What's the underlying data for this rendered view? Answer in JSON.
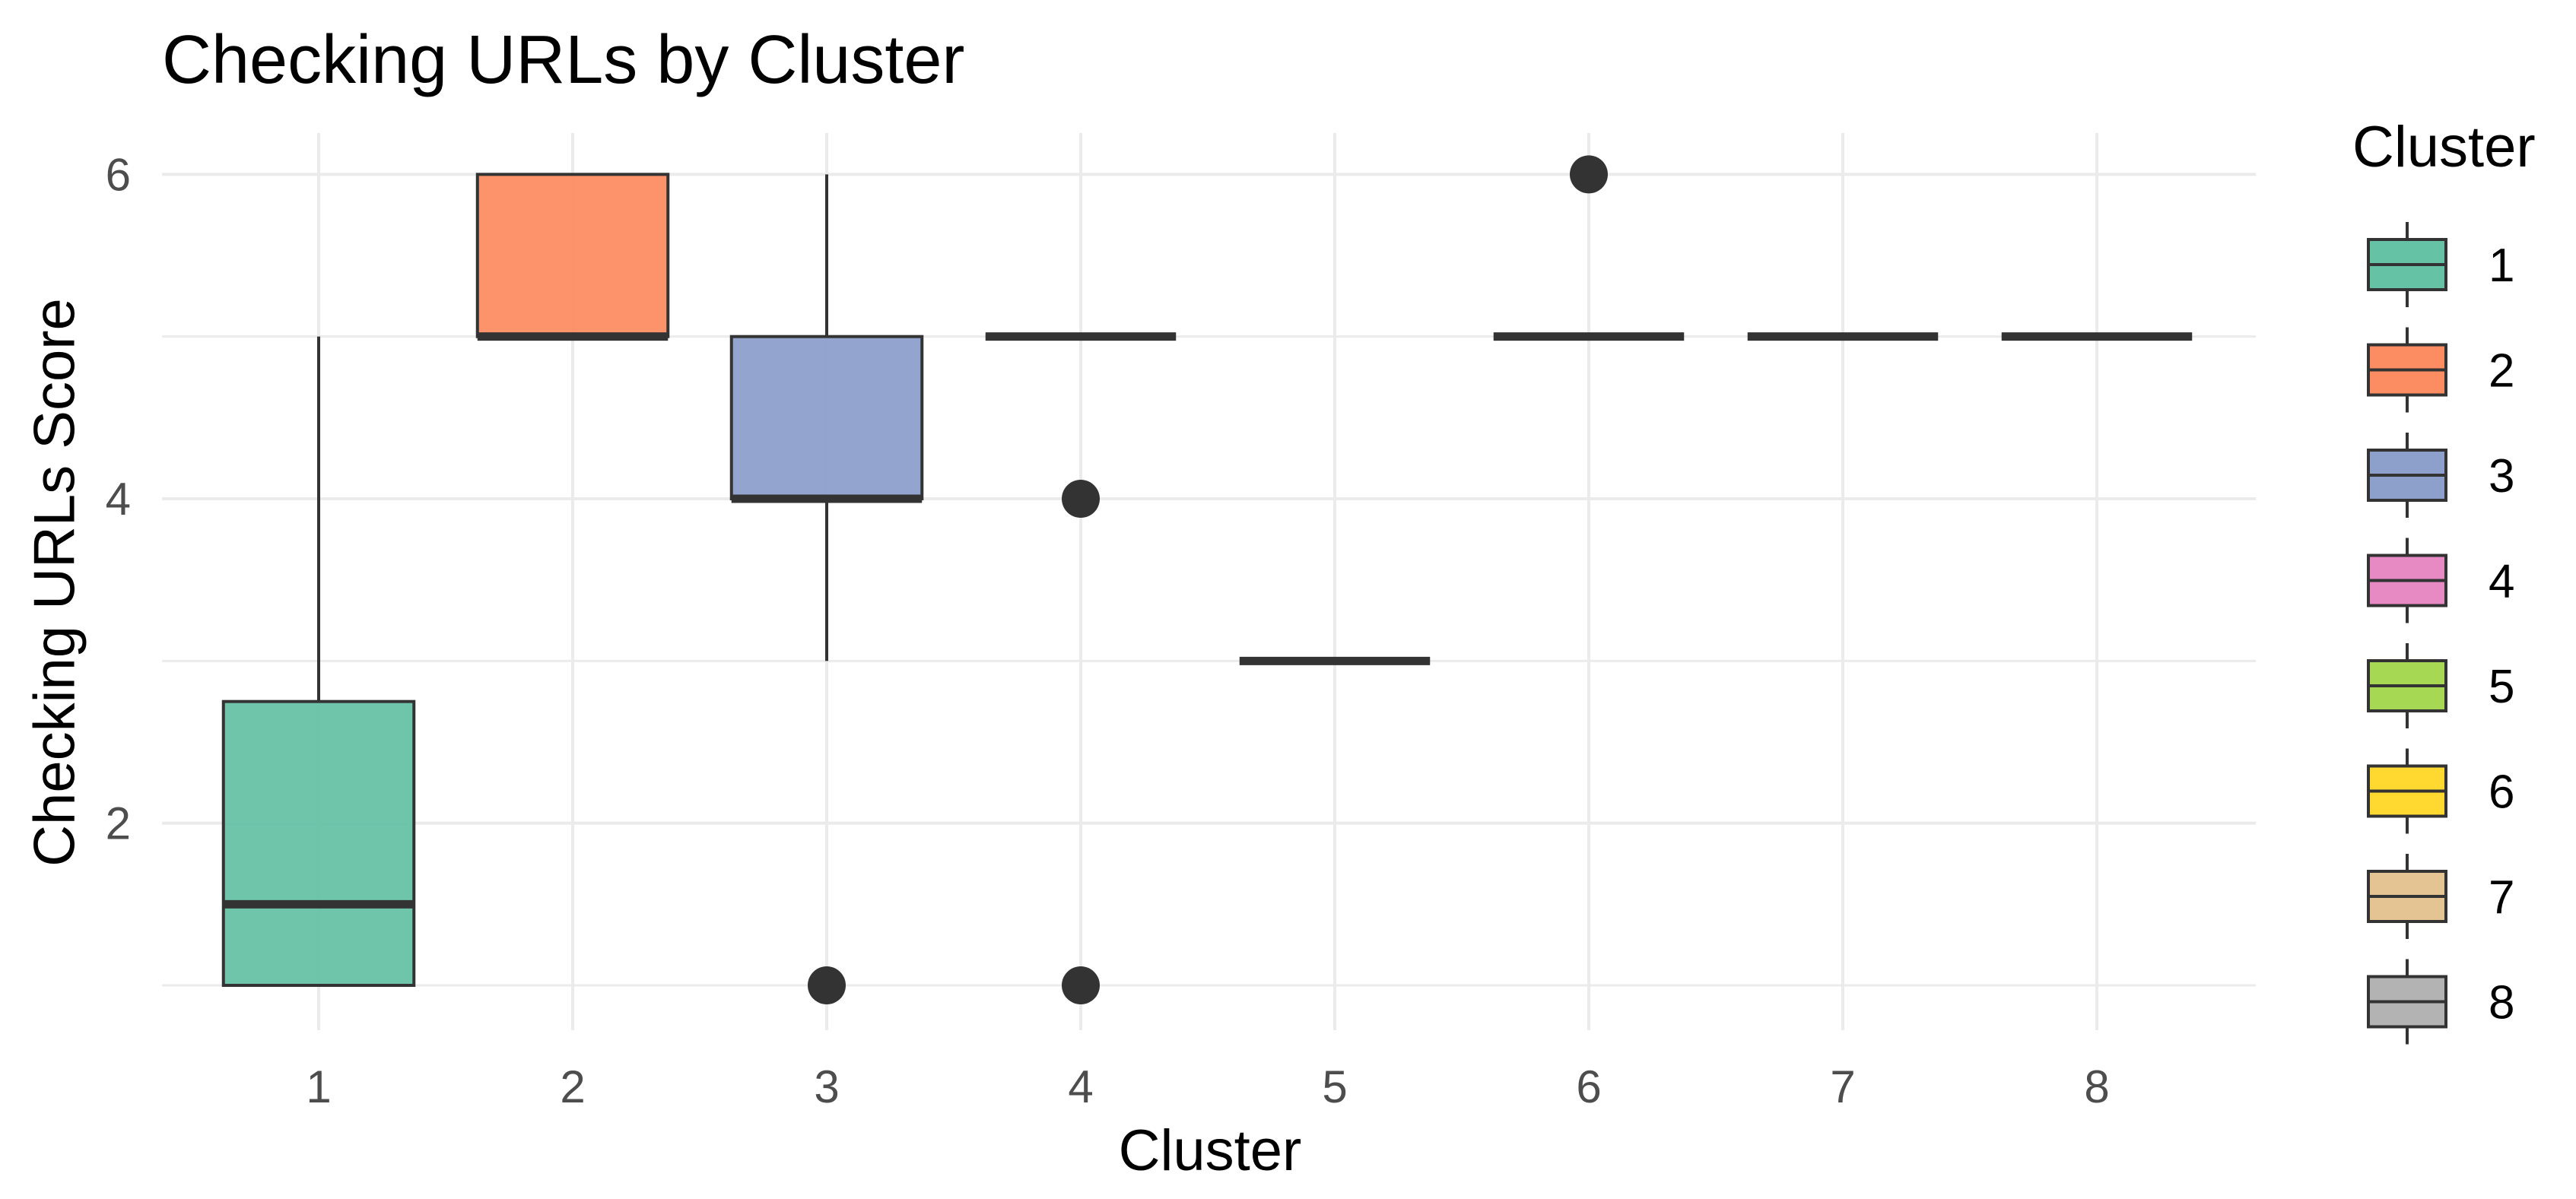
{
  "chart_data": {
    "type": "boxplot",
    "title": "Checking URLs by Cluster",
    "xlabel": "Cluster",
    "ylabel": "Checking URLs Score",
    "categories": [
      "1",
      "2",
      "3",
      "4",
      "5",
      "6",
      "7",
      "8"
    ],
    "ylim": [
      0.75,
      6.25
    ],
    "y_ticks": [
      2,
      4,
      6
    ],
    "grid": true,
    "legend": {
      "title": "Cluster",
      "position": "right",
      "entries": [
        "1",
        "2",
        "3",
        "4",
        "5",
        "6",
        "7",
        "8"
      ]
    },
    "colors": [
      "#66c2a5",
      "#fc8d62",
      "#8da0cb",
      "#e78ac3",
      "#a6d854",
      "#ffd92f",
      "#e5c494",
      "#b3b3b3"
    ],
    "boxes": [
      {
        "cluster": "1",
        "min": 1,
        "q1": 1,
        "median": 1.5,
        "q3": 2.75,
        "max": 5,
        "outliers": []
      },
      {
        "cluster": "2",
        "min": 5,
        "q1": 5,
        "median": 5,
        "q3": 6,
        "max": 6,
        "outliers": []
      },
      {
        "cluster": "3",
        "min": 3,
        "q1": 4,
        "median": 4,
        "q3": 5,
        "max": 6,
        "outliers": [
          1
        ]
      },
      {
        "cluster": "4",
        "min": 5,
        "q1": 5,
        "median": 5,
        "q3": 5,
        "max": 5,
        "outliers": [
          4,
          1
        ]
      },
      {
        "cluster": "5",
        "min": 3,
        "q1": 3,
        "median": 3,
        "q3": 3,
        "max": 3,
        "outliers": []
      },
      {
        "cluster": "6",
        "min": 5,
        "q1": 5,
        "median": 5,
        "q3": 5,
        "max": 5,
        "outliers": [
          6
        ]
      },
      {
        "cluster": "7",
        "min": 5,
        "q1": 5,
        "median": 5,
        "q3": 5,
        "max": 5,
        "outliers": []
      },
      {
        "cluster": "8",
        "min": 5,
        "q1": 5,
        "median": 5,
        "q3": 5,
        "max": 5,
        "outliers": []
      }
    ]
  }
}
